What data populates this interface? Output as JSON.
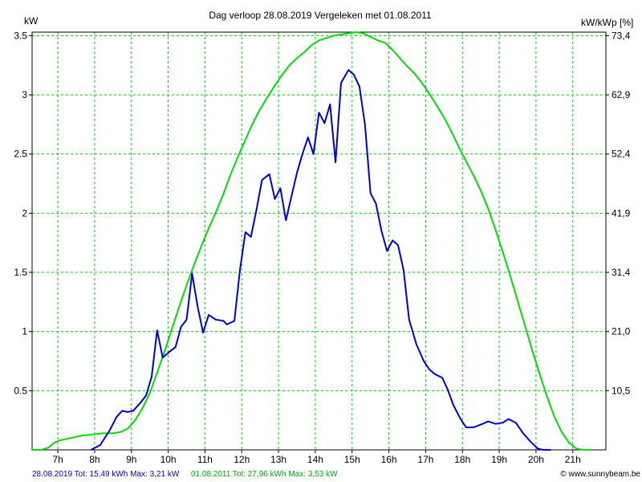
{
  "chart_data": {
    "type": "line",
    "title": "Dag  verloop 28.08.2019   Vergeleken met 01.08.2011",
    "ylabel_left": "kW",
    "ylabel_right": "kW/kWp [%]",
    "grid": true,
    "xlim": [
      6.3,
      21.9
    ],
    "ylim": [
      0,
      3.53
    ],
    "x_ticks": [
      7,
      8,
      9,
      10,
      11,
      12,
      13,
      14,
      15,
      16,
      17,
      18,
      19,
      20,
      21
    ],
    "x_tick_labels": [
      "7h",
      "8h",
      "9h",
      "10h",
      "11h",
      "12h",
      "13h",
      "14h",
      "15h",
      "16h",
      "17h",
      "18h",
      "19h",
      "20h",
      "21h"
    ],
    "y_left_ticks": [
      0.5,
      1,
      1.5,
      2,
      2.5,
      3,
      3.5
    ],
    "y_left_tick_labels": [
      "0.5",
      "1",
      "1.5",
      "2",
      "2.5",
      "3",
      "3.5"
    ],
    "y_right_tick_labels": [
      "10,5",
      "21,0",
      "31,4",
      "41,9",
      "52,4",
      "62,9",
      "73,4"
    ],
    "series": [
      {
        "name": "28.08.2019",
        "color": "#0000cc",
        "points": [
          [
            7.9,
            0.0
          ],
          [
            8.15,
            0.04
          ],
          [
            8.4,
            0.16
          ],
          [
            8.6,
            0.28
          ],
          [
            8.75,
            0.33
          ],
          [
            8.9,
            0.32
          ],
          [
            9.05,
            0.33
          ],
          [
            9.25,
            0.4
          ],
          [
            9.4,
            0.46
          ],
          [
            9.55,
            0.62
          ],
          [
            9.7,
            1.01
          ],
          [
            9.85,
            0.78
          ],
          [
            10.0,
            0.82
          ],
          [
            10.2,
            0.87
          ],
          [
            10.35,
            1.04
          ],
          [
            10.5,
            1.1
          ],
          [
            10.65,
            1.49
          ],
          [
            10.8,
            1.21
          ],
          [
            10.95,
            0.99
          ],
          [
            11.1,
            1.14
          ],
          [
            11.3,
            1.1
          ],
          [
            11.5,
            1.09
          ],
          [
            11.6,
            1.06
          ],
          [
            11.8,
            1.09
          ],
          [
            11.95,
            1.52
          ],
          [
            12.1,
            1.84
          ],
          [
            12.25,
            1.8
          ],
          [
            12.4,
            2.03
          ],
          [
            12.55,
            2.28
          ],
          [
            12.75,
            2.33
          ],
          [
            12.9,
            2.12
          ],
          [
            13.05,
            2.21
          ],
          [
            13.2,
            1.94
          ],
          [
            13.35,
            2.14
          ],
          [
            13.5,
            2.34
          ],
          [
            13.65,
            2.5
          ],
          [
            13.8,
            2.64
          ],
          [
            13.95,
            2.5
          ],
          [
            14.1,
            2.85
          ],
          [
            14.25,
            2.76
          ],
          [
            14.4,
            2.92
          ],
          [
            14.55,
            2.43
          ],
          [
            14.7,
            3.1
          ],
          [
            14.9,
            3.21
          ],
          [
            15.05,
            3.17
          ],
          [
            15.2,
            3.07
          ],
          [
            15.35,
            2.75
          ],
          [
            15.5,
            2.17
          ],
          [
            15.65,
            2.08
          ],
          [
            15.8,
            1.85
          ],
          [
            15.95,
            1.68
          ],
          [
            16.1,
            1.77
          ],
          [
            16.25,
            1.73
          ],
          [
            16.4,
            1.52
          ],
          [
            16.55,
            1.1
          ],
          [
            16.75,
            0.89
          ],
          [
            16.95,
            0.75
          ],
          [
            17.1,
            0.68
          ],
          [
            17.25,
            0.64
          ],
          [
            17.45,
            0.61
          ],
          [
            17.6,
            0.51
          ],
          [
            17.75,
            0.38
          ],
          [
            17.95,
            0.26
          ],
          [
            18.1,
            0.19
          ],
          [
            18.3,
            0.19
          ],
          [
            18.55,
            0.22
          ],
          [
            18.7,
            0.24
          ],
          [
            18.9,
            0.22
          ],
          [
            19.1,
            0.23
          ],
          [
            19.25,
            0.26
          ],
          [
            19.45,
            0.23
          ],
          [
            19.65,
            0.14
          ],
          [
            19.85,
            0.07
          ],
          [
            20.05,
            0.01
          ],
          [
            20.2,
            0.0
          ],
          [
            20.4,
            0.0
          ]
        ]
      },
      {
        "name": "01.08.2011",
        "color": "#00dd00",
        "points": [
          [
            6.3,
            0.0
          ],
          [
            6.55,
            0.0
          ],
          [
            6.75,
            0.02
          ],
          [
            6.9,
            0.06
          ],
          [
            7.05,
            0.08
          ],
          [
            7.35,
            0.1
          ],
          [
            7.65,
            0.12
          ],
          [
            7.95,
            0.13
          ],
          [
            8.2,
            0.14
          ],
          [
            8.5,
            0.14
          ],
          [
            8.7,
            0.15
          ],
          [
            8.9,
            0.18
          ],
          [
            9.1,
            0.25
          ],
          [
            9.3,
            0.35
          ],
          [
            9.5,
            0.48
          ],
          [
            9.7,
            0.65
          ],
          [
            9.9,
            0.83
          ],
          [
            10.1,
            1.02
          ],
          [
            10.3,
            1.21
          ],
          [
            10.5,
            1.39
          ],
          [
            10.7,
            1.56
          ],
          [
            10.9,
            1.72
          ],
          [
            11.1,
            1.87
          ],
          [
            11.3,
            2.01
          ],
          [
            11.5,
            2.16
          ],
          [
            11.7,
            2.33
          ],
          [
            11.9,
            2.48
          ],
          [
            12.1,
            2.62
          ],
          [
            12.3,
            2.76
          ],
          [
            12.5,
            2.88
          ],
          [
            12.7,
            2.98
          ],
          [
            12.9,
            3.08
          ],
          [
            13.1,
            3.17
          ],
          [
            13.3,
            3.25
          ],
          [
            13.5,
            3.31
          ],
          [
            13.7,
            3.36
          ],
          [
            13.9,
            3.42
          ],
          [
            14.1,
            3.46
          ],
          [
            14.3,
            3.48
          ],
          [
            14.5,
            3.5
          ],
          [
            14.7,
            3.51
          ],
          [
            14.9,
            3.52
          ],
          [
            15.1,
            3.53
          ],
          [
            15.3,
            3.52
          ],
          [
            15.5,
            3.49
          ],
          [
            15.7,
            3.46
          ],
          [
            15.9,
            3.44
          ],
          [
            16.1,
            3.38
          ],
          [
            16.3,
            3.31
          ],
          [
            16.5,
            3.24
          ],
          [
            16.7,
            3.18
          ],
          [
            16.9,
            3.1
          ],
          [
            17.1,
            3.01
          ],
          [
            17.3,
            2.91
          ],
          [
            17.5,
            2.81
          ],
          [
            17.7,
            2.69
          ],
          [
            17.9,
            2.56
          ],
          [
            18.1,
            2.44
          ],
          [
            18.3,
            2.32
          ],
          [
            18.5,
            2.19
          ],
          [
            18.7,
            2.04
          ],
          [
            18.9,
            1.86
          ],
          [
            19.1,
            1.67
          ],
          [
            19.3,
            1.47
          ],
          [
            19.5,
            1.26
          ],
          [
            19.7,
            1.05
          ],
          [
            19.9,
            0.84
          ],
          [
            20.1,
            0.64
          ],
          [
            20.3,
            0.45
          ],
          [
            20.5,
            0.28
          ],
          [
            20.7,
            0.15
          ],
          [
            20.9,
            0.06
          ],
          [
            21.1,
            0.01
          ],
          [
            21.3,
            0.0
          ],
          [
            21.5,
            0.0
          ]
        ]
      }
    ]
  },
  "footer": {
    "legend_blue": "28.08.2019 Tot: 15,49 kWh Max: 3,21 kW",
    "legend_green": "01.08.2011 Tot: 27,96 kWh Max: 3,53 kW",
    "credit": "© www.sunnybeam.be"
  }
}
